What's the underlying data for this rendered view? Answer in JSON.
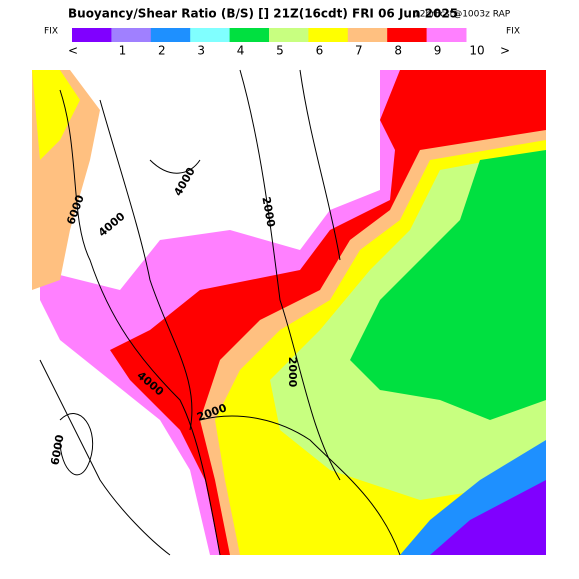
{
  "header": {
    "title": "Buoyancy/Shear Ratio (B/S) [] 21Z(16cdt) FRI 06 Jun 2025",
    "run": "12hrFcst@1003z RAP"
  },
  "legend": {
    "left": "FIX",
    "right": "FIX",
    "less": "<",
    "more": ">",
    "labels": [
      "1",
      "2",
      "3",
      "4",
      "5",
      "6",
      "7",
      "8",
      "9",
      "10"
    ],
    "colors": [
      "#8000ff",
      "#a080ff",
      "#1e90ff",
      "#80ffff",
      "#00e040",
      "#c8ff80",
      "#ffff00",
      "#ffc080",
      "#ff0000",
      "#ff80ff"
    ]
  },
  "map": {
    "contour_labels": [
      "6000",
      "4000",
      "4000",
      "2000",
      "2000",
      "4000",
      "2000",
      "6000"
    ]
  }
}
